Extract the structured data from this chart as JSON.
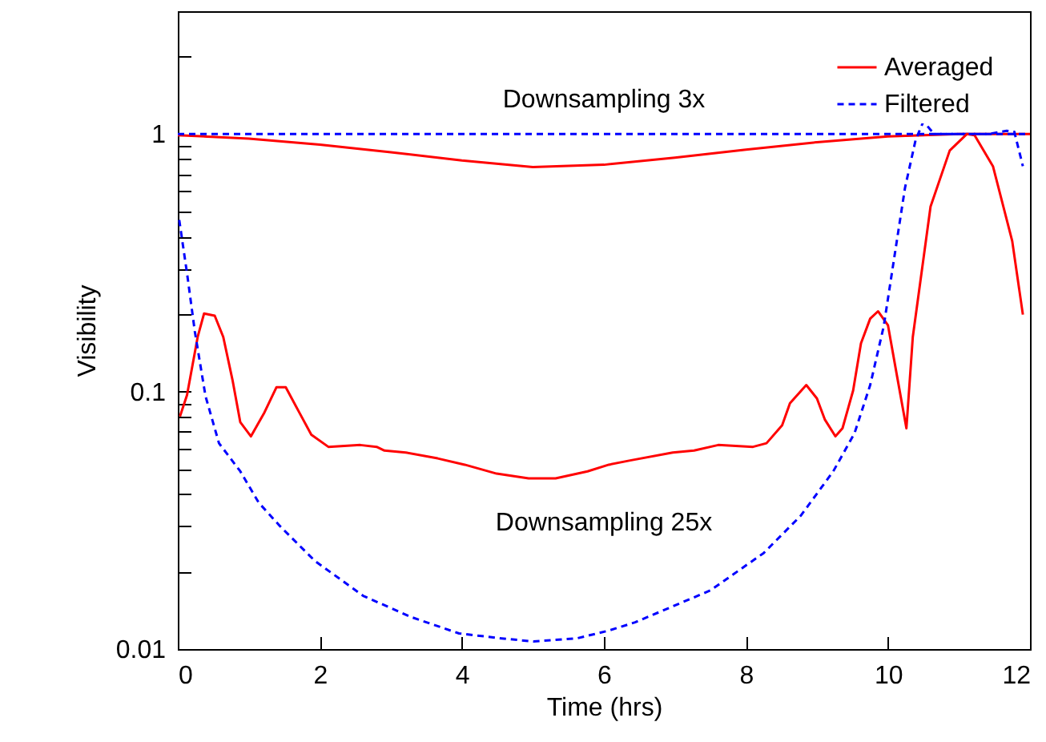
{
  "chart_data": {
    "type": "line",
    "xlabel": "Time (hrs)",
    "ylabel": "Visibility",
    "log": "y",
    "grid": false,
    "legend": "top right",
    "xlim": [
      0,
      12
    ],
    "xticks": [
      0,
      2,
      4,
      6,
      8,
      10,
      12
    ],
    "ylim": [
      0.01,
      3
    ],
    "yticks": [
      0.01,
      {
        "value": 0.02,
        "label": null
      },
      {
        "value": 0.03,
        "label": null
      },
      {
        "value": 0.04,
        "label": null
      },
      {
        "value": 0.05,
        "label": null
      },
      {
        "value": 0.06,
        "label": null
      },
      {
        "value": 0.07,
        "label": null
      },
      {
        "value": 0.08,
        "label": null
      },
      {
        "value": 0.09,
        "label": null
      },
      0.1,
      {
        "value": 0.2,
        "label": null
      },
      {
        "value": 0.3,
        "label": null
      },
      {
        "value": 0.4,
        "label": null
      },
      {
        "value": 0.5,
        "label": null
      },
      {
        "value": 0.6,
        "label": null
      },
      {
        "value": 0.7,
        "label": null
      },
      {
        "value": 0.8,
        "label": null
      },
      {
        "value": 0.9,
        "label": null
      },
      1,
      {
        "value": 2,
        "label": null
      },
      {
        "value": 3,
        "label": null
      }
    ],
    "annotations": [
      "Downsampling 3x",
      "Downsampling 25x"
    ],
    "series": [
      {
        "name": "Averaged",
        "color": "#ff0000",
        "line_style": "solid",
        "x": [
          0,
          1,
          2,
          3,
          4,
          5,
          6,
          7,
          8,
          9,
          10,
          11,
          12
        ],
        "values": [
          0.99,
          0.96,
          0.91,
          0.85,
          0.79,
          0.745,
          0.76,
          0.81,
          0.87,
          0.93,
          0.98,
          1,
          1
        ]
      },
      {
        "name": "Filtered",
        "color": "#0000ff",
        "line_style": "dashed",
        "x": [
          0,
          12
        ],
        "values": [
          1,
          1
        ]
      },
      {
        "color": "#ff0000",
        "line_style": "solid",
        "x": [
          0.03,
          0.13,
          0.28,
          0.37,
          0.52,
          0.64,
          0.77,
          0.88,
          1.03,
          1.22,
          1.39,
          1.52,
          1.71,
          1.88,
          2.12,
          2.57,
          2.8,
          2.91,
          3.21,
          3.66,
          4.04,
          4.49,
          4.94,
          5.32,
          5.77,
          6.07,
          6.37,
          6.97,
          7.27,
          7.61,
          8.1,
          8.29,
          8.51,
          8.62,
          8.85,
          9.0,
          9.11,
          9.26,
          9.36,
          9.51,
          9.62,
          9.75,
          9.86,
          10.0,
          10.13,
          10.26,
          10.35,
          10.6,
          10.87,
          11.11,
          11.22,
          11.48,
          11.75,
          11.9
        ],
        "values": [
          0.08,
          0.097,
          0.163,
          0.201,
          0.197,
          0.163,
          0.111,
          0.076,
          0.067,
          0.083,
          0.104,
          0.104,
          0.083,
          0.068,
          0.061,
          0.062,
          0.061,
          0.059,
          0.058,
          0.055,
          0.052,
          0.048,
          0.046,
          0.046,
          0.049,
          0.052,
          0.054,
          0.058,
          0.059,
          0.062,
          0.061,
          0.063,
          0.074,
          0.09,
          0.106,
          0.094,
          0.078,
          0.067,
          0.072,
          0.101,
          0.154,
          0.192,
          0.205,
          0.181,
          0.114,
          0.072,
          0.163,
          0.523,
          0.863,
          1.0,
          0.99,
          0.748,
          0.384,
          0.199
        ]
      },
      {
        "color": "#0000ff",
        "line_style": "dashed",
        "x": [
          0.02,
          0.13,
          0.24,
          0.39,
          0.58,
          0.88,
          1.14,
          1.44,
          1.93,
          2.61,
          3.29,
          3.96,
          4.56,
          5.01,
          5.62,
          6.07,
          6.44,
          7.5,
          8.25,
          8.77,
          9.23,
          9.53,
          9.75,
          9.94,
          10.09,
          10.24,
          10.39,
          10.5,
          10.65,
          11.11,
          11.41,
          11.67,
          11.78,
          11.9
        ],
        "values": [
          0.464,
          0.288,
          0.171,
          0.096,
          0.063,
          0.049,
          0.037,
          0.03,
          0.022,
          0.0161,
          0.0133,
          0.0115,
          0.011,
          0.0107,
          0.011,
          0.0118,
          0.0127,
          0.0169,
          0.0236,
          0.0329,
          0.049,
          0.069,
          0.106,
          0.179,
          0.333,
          0.618,
          0.95,
          1.12,
          1.0,
          1.0,
          1.0,
          1.03,
          1.02,
          0.75
        ]
      }
    ]
  }
}
